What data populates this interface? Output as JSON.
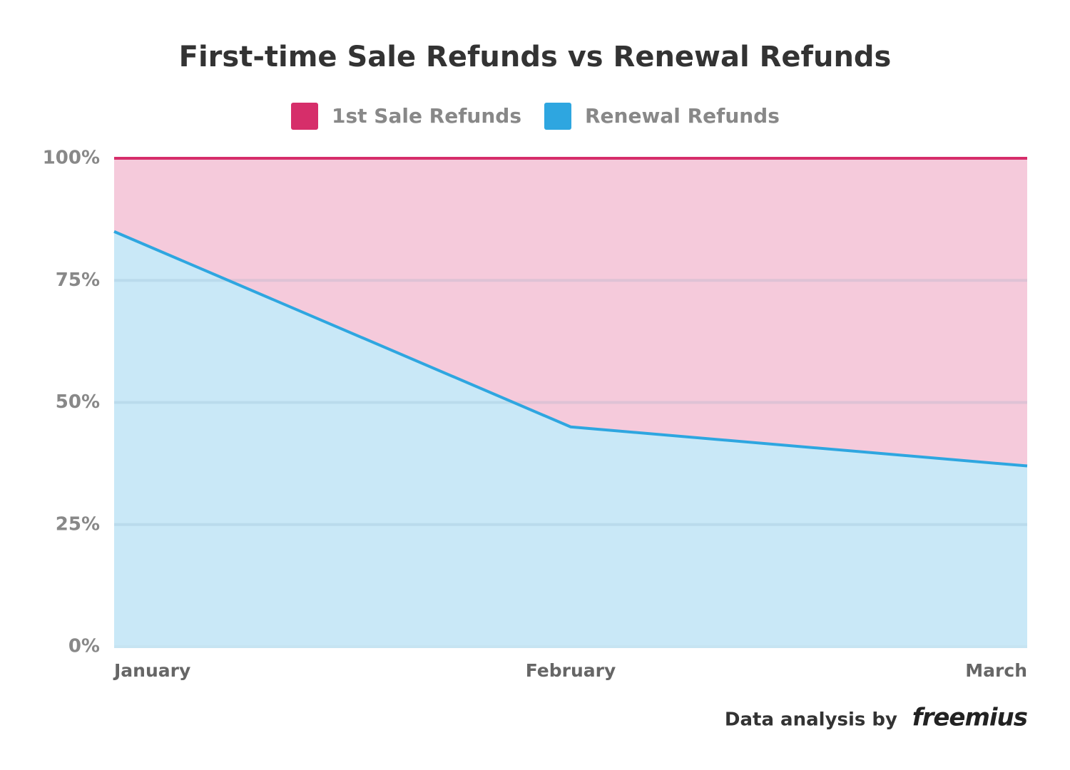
{
  "chart_data": {
    "type": "stacked-area",
    "title": "First-time Sale Refunds vs Renewal Refunds",
    "categories": [
      "January",
      "February",
      "March"
    ],
    "series": [
      {
        "name": "1st Sale Refunds",
        "color": "#d62e6a",
        "fill": "#f5cadb",
        "values": [
          15,
          55,
          63
        ]
      },
      {
        "name": "Renewal Refunds",
        "color": "#2ea6e0",
        "fill": "#c9e8f7",
        "values": [
          85,
          45,
          37
        ]
      }
    ],
    "ylim": [
      0,
      100
    ],
    "yticks": [
      {
        "value": 0,
        "label": "0%"
      },
      {
        "value": 25,
        "label": "25%"
      },
      {
        "value": 50,
        "label": "50%"
      },
      {
        "value": 75,
        "label": "75%"
      },
      {
        "value": 100,
        "label": "100%"
      }
    ],
    "grid": true,
    "legend": "top"
  },
  "footer": {
    "text": "Data analysis by",
    "brand": "freemius"
  }
}
